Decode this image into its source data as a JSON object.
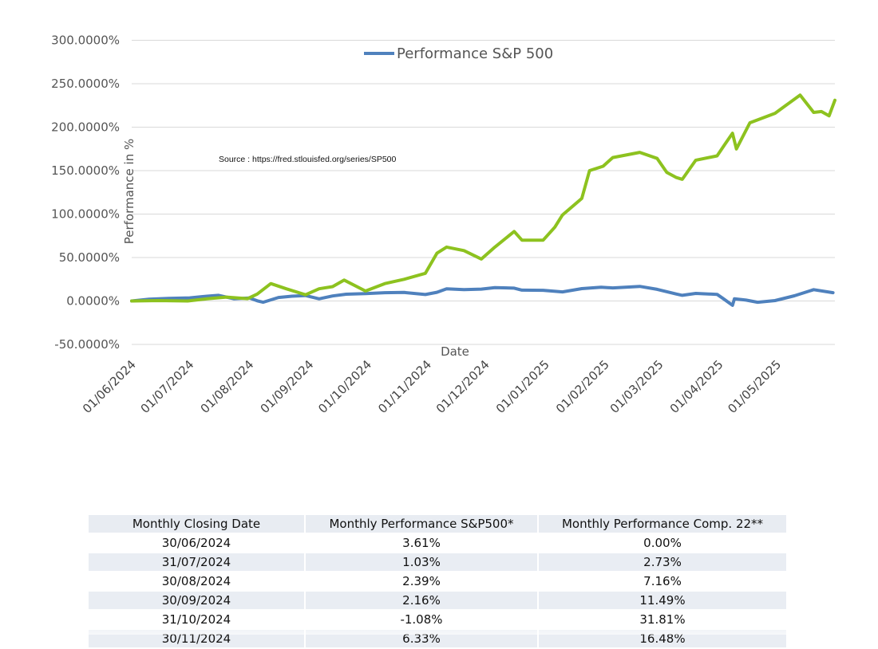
{
  "chart_data": {
    "type": "line",
    "title": "",
    "xlabel": "Date",
    "ylabel": "Performance in %",
    "ylim": [
      -50,
      300
    ],
    "yticks": [
      -50,
      0,
      50,
      100,
      150,
      200,
      250,
      300
    ],
    "ytick_labels": [
      "-50.0000%",
      "0.0000%",
      "50.0000%",
      "100.0000%",
      "150.0000%",
      "200.0000%",
      "250.0000%",
      "300.0000%"
    ],
    "xlim": [
      "2024-06-01",
      "2025-05-31"
    ],
    "xtick_dates": [
      "2024-06-01",
      "2024-07-01",
      "2024-08-01",
      "2024-09-01",
      "2024-10-01",
      "2024-11-01",
      "2024-12-01",
      "2025-01-01",
      "2025-02-01",
      "2025-03-01",
      "2025-04-01",
      "2025-05-01"
    ],
    "xtick_labels": [
      "01/06/2024",
      "01/07/2024",
      "01/08/2024",
      "01/09/2024",
      "01/10/2024",
      "01/11/2024",
      "01/12/2024",
      "01/01/2025",
      "01/02/2025",
      "01/03/2025",
      "01/04/2025",
      "01/05/2025"
    ],
    "grid": true,
    "legend_position": "top-center",
    "annotation": "Source : https://fred.stlouisfed.org/series/SP500",
    "series": [
      {
        "name": "Performance S&P 500",
        "color": "#4f81bd",
        "x": [
          "2024-06-01",
          "2024-06-10",
          "2024-06-20",
          "2024-07-01",
          "2024-07-10",
          "2024-07-16",
          "2024-07-24",
          "2024-08-01",
          "2024-08-05",
          "2024-08-08",
          "2024-08-16",
          "2024-08-23",
          "2024-08-30",
          "2024-09-06",
          "2024-09-13",
          "2024-09-20",
          "2024-09-30",
          "2024-10-10",
          "2024-10-20",
          "2024-10-31",
          "2024-11-06",
          "2024-11-11",
          "2024-11-20",
          "2024-11-29",
          "2024-12-06",
          "2024-12-16",
          "2024-12-20",
          "2024-12-31",
          "2025-01-10",
          "2025-01-20",
          "2025-01-30",
          "2025-02-05",
          "2025-02-19",
          "2025-02-28",
          "2025-03-10",
          "2025-03-13",
          "2025-03-20",
          "2025-03-31",
          "2025-04-03",
          "2025-04-08",
          "2025-04-09",
          "2025-04-15",
          "2025-04-21",
          "2025-04-30",
          "2025-05-10",
          "2025-05-20",
          "2025-05-30"
        ],
        "y": [
          0.0,
          2.0,
          3.0,
          3.6,
          5.5,
          6.5,
          2.5,
          3.5,
          0.2,
          -1.5,
          4.0,
          5.5,
          6.2,
          2.5,
          5.8,
          7.8,
          8.4,
          9.5,
          9.8,
          7.4,
          10.0,
          14.0,
          13.0,
          13.7,
          15.4,
          14.8,
          12.5,
          12.3,
          10.5,
          14.2,
          15.8,
          15.0,
          16.8,
          13.4,
          8.0,
          6.5,
          8.7,
          7.6,
          3.0,
          -5.0,
          2.5,
          1.0,
          -1.5,
          0.5,
          6.0,
          13.0,
          9.5
        ]
      },
      {
        "name": "",
        "color": "#8dc21f",
        "x": [
          "2024-06-01",
          "2024-06-15",
          "2024-06-30",
          "2024-07-10",
          "2024-07-20",
          "2024-07-31",
          "2024-08-05",
          "2024-08-12",
          "2024-08-20",
          "2024-08-30",
          "2024-09-06",
          "2024-09-13",
          "2024-09-19",
          "2024-09-30",
          "2024-10-10",
          "2024-10-20",
          "2024-10-31",
          "2024-11-06",
          "2024-11-11",
          "2024-11-20",
          "2024-11-29",
          "2024-12-06",
          "2024-12-16",
          "2024-12-20",
          "2024-12-31",
          "2025-01-06",
          "2025-01-10",
          "2025-01-20",
          "2025-01-24",
          "2025-01-31",
          "2025-02-05",
          "2025-02-12",
          "2025-02-19",
          "2025-02-28",
          "2025-03-05",
          "2025-03-10",
          "2025-03-13",
          "2025-03-20",
          "2025-03-31",
          "2025-04-04",
          "2025-04-08",
          "2025-04-10",
          "2025-04-17",
          "2025-04-30",
          "2025-05-05",
          "2025-05-13",
          "2025-05-20",
          "2025-05-24",
          "2025-05-28",
          "2025-05-31"
        ],
        "y": [
          0.0,
          0.5,
          0.0,
          2.5,
          4.5,
          2.7,
          8.0,
          20.0,
          14.0,
          7.2,
          14.0,
          16.5,
          24.0,
          11.5,
          20.0,
          25.0,
          31.8,
          55.0,
          62.0,
          58.0,
          48.3,
          62.0,
          80.0,
          70.0,
          70.0,
          85.0,
          99.0,
          118.0,
          150.0,
          155.0,
          165.0,
          168.0,
          171.0,
          164.0,
          148.0,
          142.0,
          140.0,
          162.0,
          167.0,
          180.0,
          193.0,
          175.0,
          205.0,
          216.0,
          224.0,
          237.0,
          217.0,
          218.0,
          213.0,
          231.0
        ]
      }
    ]
  },
  "table": {
    "headers": [
      "Monthly Closing Date",
      "Monthly Performance S&P500*",
      "Monthly Performance Comp. 22**"
    ],
    "rows": [
      [
        "30/06/2024",
        "3.61%",
        "0.00%"
      ],
      [
        "31/07/2024",
        "1.03%",
        "2.73%"
      ],
      [
        "30/08/2024",
        "2.39%",
        "7.16%"
      ],
      [
        "30/09/2024",
        "2.16%",
        "11.49%"
      ],
      [
        "31/10/2024",
        "-1.08%",
        "31.81%"
      ],
      [
        "30/11/2024",
        "6.33%",
        "16.48%"
      ]
    ]
  }
}
